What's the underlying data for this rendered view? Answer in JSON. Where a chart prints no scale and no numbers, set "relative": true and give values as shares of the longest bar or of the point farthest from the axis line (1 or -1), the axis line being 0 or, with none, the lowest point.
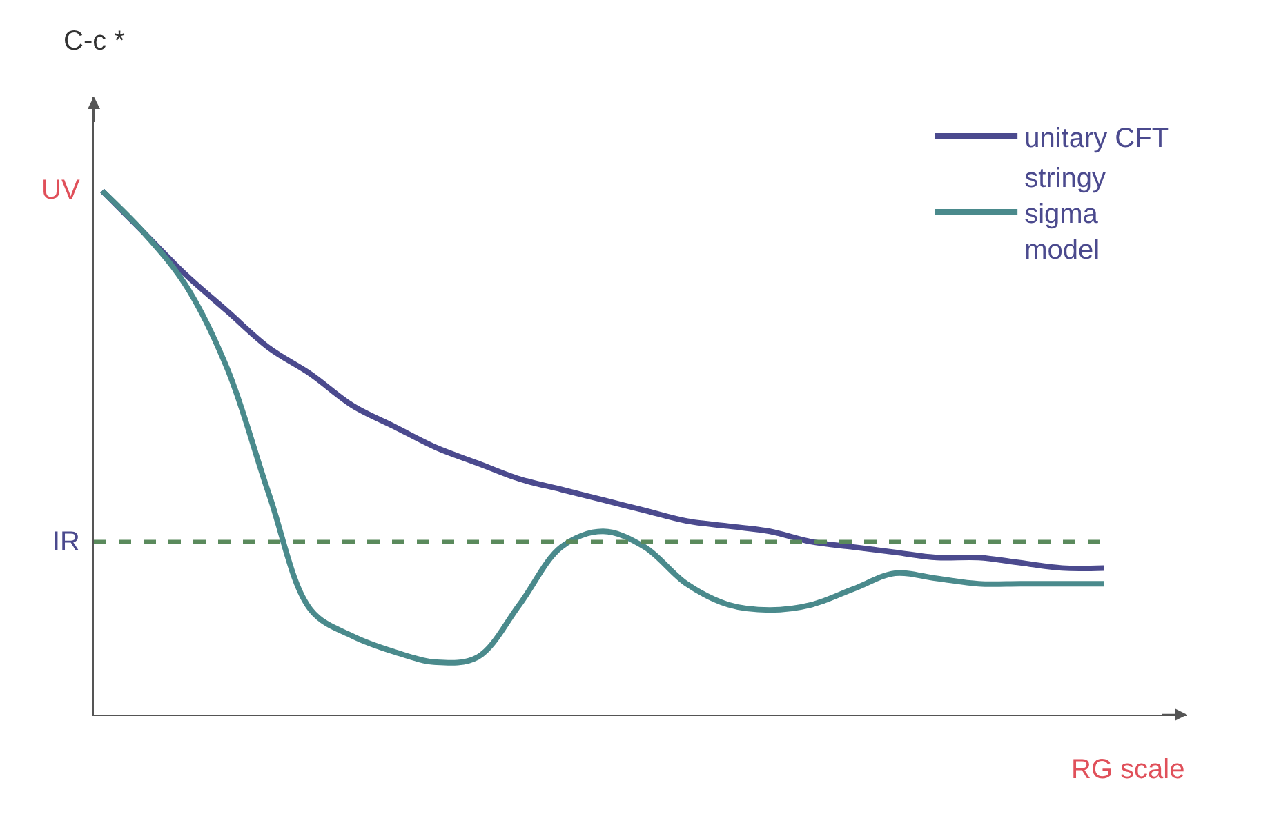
{
  "chart_data": {
    "type": "line",
    "relative": true,
    "ylabel": "C-c *",
    "xlabel": "RG scale",
    "categories": [
      null,
      null,
      null,
      null,
      null,
      null,
      null,
      null,
      null,
      null,
      null,
      null,
      null,
      null,
      null,
      null,
      null,
      null,
      null,
      null,
      null,
      null,
      null,
      null,
      null
    ],
    "series": [
      {
        "name": "unitary CFT",
        "color": "#4b4a8e",
        "values": [
          1,
          0.92,
          0.84,
          0.77,
          0.7,
          0.65,
          0.59,
          0.55,
          0.51,
          0.48,
          0.45,
          0.43,
          0.41,
          0.39,
          0.37,
          0.36,
          0.35,
          0.33,
          0.32,
          0.31,
          0.3,
          0.3,
          0.29,
          0.28,
          0.28
        ]
      },
      {
        "name": "stringy sigma model",
        "color": "#4a8a8c",
        "values": [
          1,
          0.92,
          0.82,
          0.66,
          0.42,
          0.2,
          0.15,
          0.12,
          0.1,
          0.11,
          0.21,
          0.32,
          0.35,
          0.32,
          0.25,
          0.21,
          0.2,
          0.21,
          0.24,
          0.27,
          0.26,
          0.25,
          0.25,
          0.25,
          0.25
        ]
      }
    ],
    "ref_lines": [
      {
        "axis": "y",
        "value": 0.33,
        "label": "IR",
        "color": "#5a8a5c",
        "line_style": "dashed"
      }
    ],
    "annotations": [
      "UV"
    ],
    "legend": "top right",
    "marker": "none",
    "line_style": "solid"
  }
}
